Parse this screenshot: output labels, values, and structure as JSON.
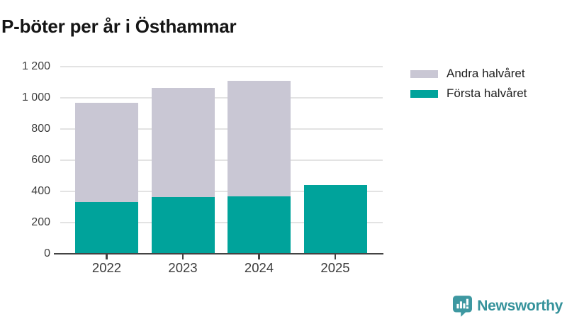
{
  "page": {
    "title": "P-böter per år i Östhammar"
  },
  "legend": {
    "items": [
      {
        "label": "Andra halvåret",
        "slug": "andra-halvaret",
        "color": "#C9C7D4"
      },
      {
        "label": "Första halvåret",
        "slug": "forsta-halvaret",
        "color": "#00A39B"
      }
    ]
  },
  "chart_data": {
    "type": "bar",
    "stacked": true,
    "title": "P-böter per år i Östhammar",
    "categories": [
      "2022",
      "2023",
      "2024",
      "2025"
    ],
    "series": [
      {
        "name": "Första halvåret",
        "slug": "forsta-halvaret",
        "color": "#00A39B",
        "values": [
          330,
          360,
          365,
          440
        ]
      },
      {
        "name": "Andra halvåret",
        "slug": "andra-halvaret",
        "color": "#C9C7D4",
        "values": [
          635,
          700,
          740,
          null
        ]
      }
    ],
    "xlabel": "",
    "ylabel": "",
    "ylim": [
      0,
      1200
    ],
    "yticks": [
      0,
      200,
      400,
      600,
      800,
      1000,
      1200
    ],
    "ytick_labels": [
      "0",
      "200",
      "400",
      "600",
      "800",
      "1 000",
      "1 200"
    ],
    "grid": true,
    "legend_position": "top-right"
  },
  "branding": {
    "name": "Newsworthy"
  },
  "colors": {
    "bar_teal": "#00A39B",
    "bar_gray": "#C9C7D4",
    "axis": "#434343",
    "gridline": "#E3E3E3",
    "tick_text": "#3D3D3D",
    "title_text": "#151515",
    "logo_teal": "#35929B"
  }
}
